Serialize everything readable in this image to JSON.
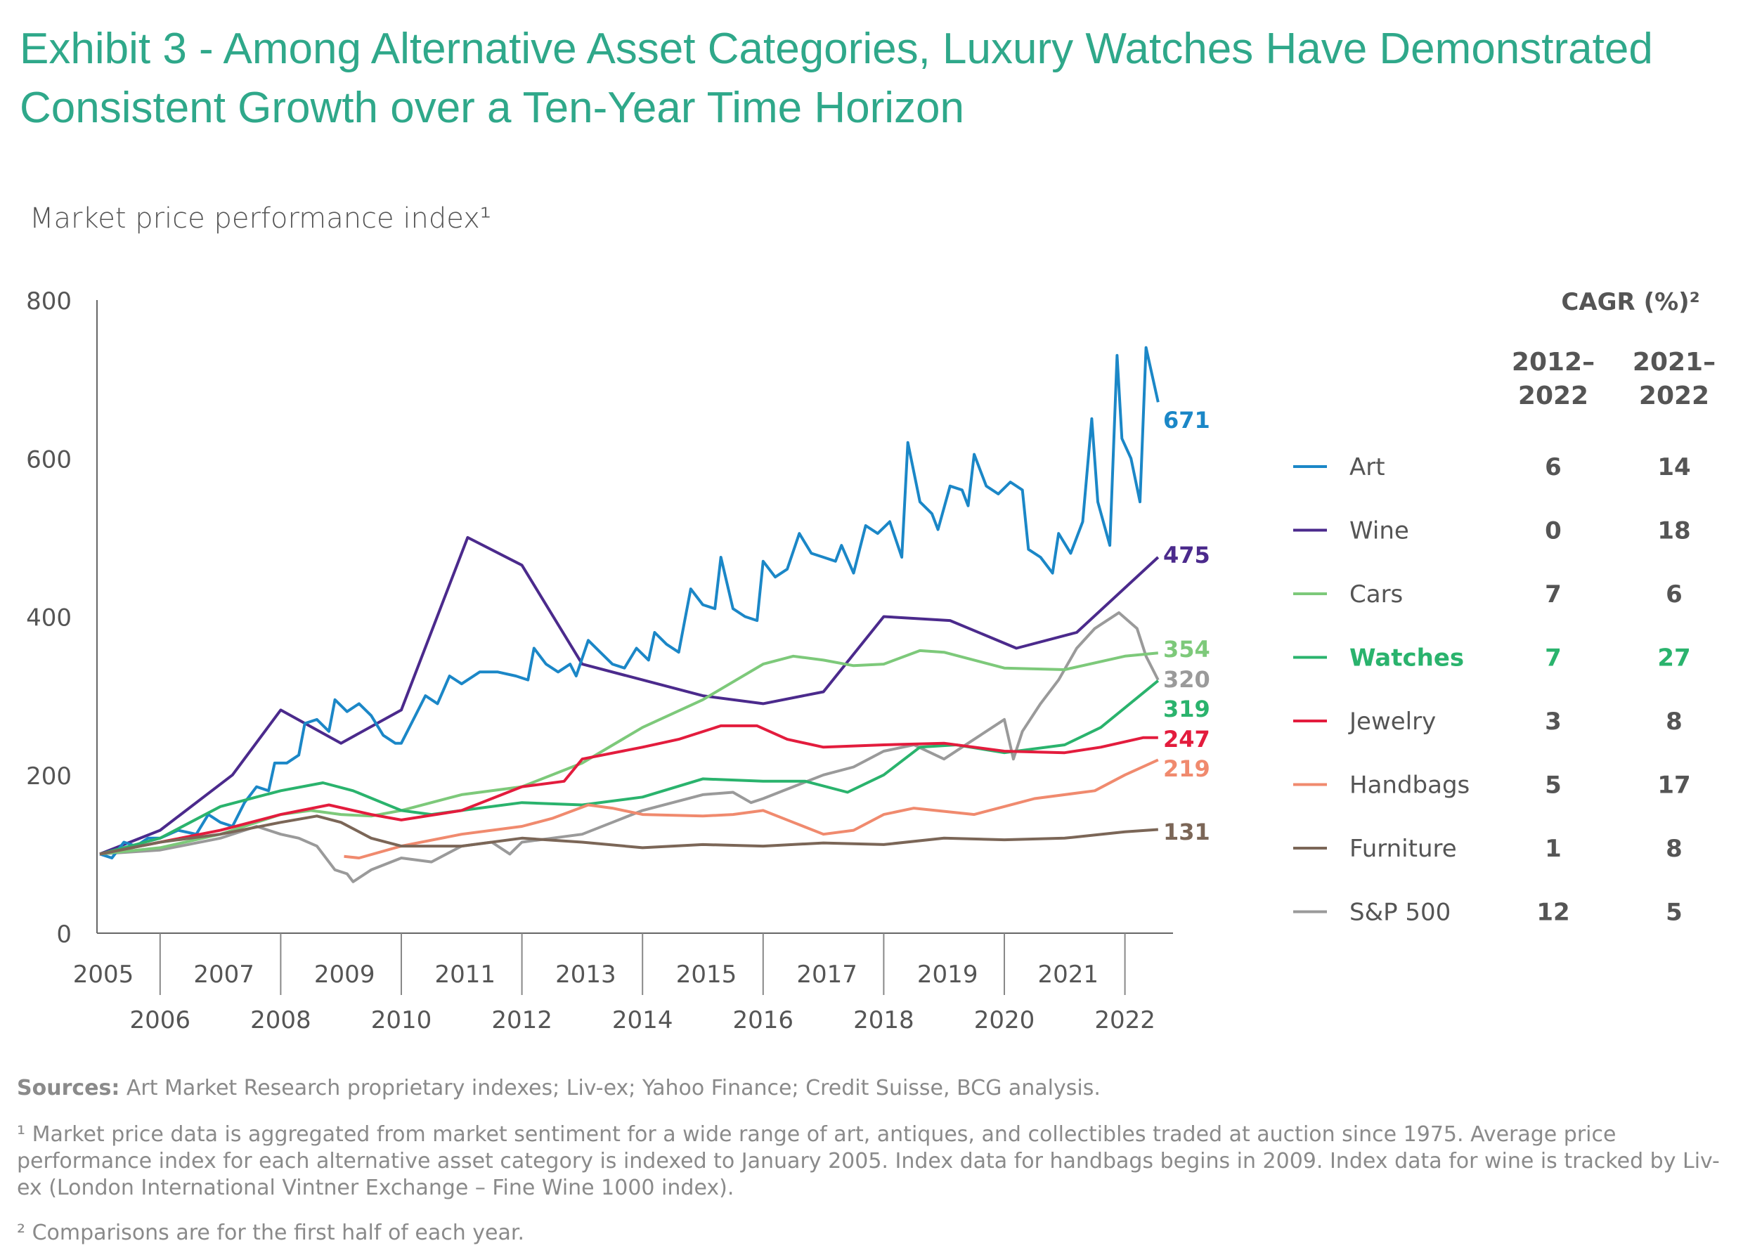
{
  "title": "Exhibit 3 - Among Alternative Asset Categories, Luxury Watches Have Demonstrated Consistent Growth over a Ten-Year Time Horizon",
  "subtitle": "Market price performance index¹",
  "sources_label": "Sources:",
  "sources_text": " Art Market Research proprietary indexes; Liv-ex; Yahoo Finance; Credit Suisse, BCG analysis.",
  "footnote1": "¹ Market price data is aggregated from market sentiment for a wide range of art, antiques, and collectibles traded at auction since 1975. Average price performance index for each alternative asset category is indexed to January 2005. Index data for handbags begins in 2009. Index data for wine is tracked by Liv-ex (London International Vintner Exchange – Fine Wine 1000 index).",
  "footnote2": "² Comparisons are for the first half of each year.",
  "chart_data": {
    "type": "line",
    "title": "Market price performance index",
    "xlabel": "",
    "ylabel": "",
    "xlim": [
      2005,
      2023
    ],
    "ylim": [
      0,
      800
    ],
    "yticks": [
      "0",
      "200",
      "400",
      "600",
      "800"
    ],
    "xticks_top": [
      "2005",
      "2007",
      "2009",
      "2011",
      "2013",
      "2015",
      "2017",
      "2019",
      "2021"
    ],
    "xticks_bottom": [
      "2006",
      "2008",
      "2010",
      "2012",
      "2014",
      "2016",
      "2018",
      "2020",
      "2022"
    ],
    "legend_title": "CAGR (%)²",
    "cagr_columns": [
      [
        "2012–",
        "2022"
      ],
      [
        "2021–",
        "2022"
      ]
    ],
    "legend_placement": "right",
    "series": [
      {
        "name": "Art",
        "color": "#1b87c7",
        "end_label": "671",
        "cagr": [
          "6",
          "14"
        ],
        "highlight": false,
        "points": [
          [
            2005,
            100
          ],
          [
            2005.2,
            95
          ],
          [
            2005.4,
            115
          ],
          [
            2005.6,
            110
          ],
          [
            2005.8,
            120
          ],
          [
            2006,
            120
          ],
          [
            2006.3,
            130
          ],
          [
            2006.6,
            125
          ],
          [
            2006.8,
            150
          ],
          [
            2007,
            140
          ],
          [
            2007.2,
            135
          ],
          [
            2007.4,
            165
          ],
          [
            2007.6,
            185
          ],
          [
            2007.8,
            180
          ],
          [
            2007.9,
            215
          ],
          [
            2008.1,
            215
          ],
          [
            2008.3,
            225
          ],
          [
            2008.4,
            265
          ],
          [
            2008.6,
            270
          ],
          [
            2008.8,
            255
          ],
          [
            2008.9,
            295
          ],
          [
            2009.1,
            280
          ],
          [
            2009.3,
            290
          ],
          [
            2009.5,
            275
          ],
          [
            2009.7,
            250
          ],
          [
            2009.9,
            240
          ],
          [
            2010,
            240
          ],
          [
            2010.2,
            270
          ],
          [
            2010.4,
            300
          ],
          [
            2010.6,
            290
          ],
          [
            2010.8,
            325
          ],
          [
            2011,
            315
          ],
          [
            2011.3,
            330
          ],
          [
            2011.6,
            330
          ],
          [
            2011.9,
            325
          ],
          [
            2012.1,
            320
          ],
          [
            2012.2,
            360
          ],
          [
            2012.4,
            340
          ],
          [
            2012.6,
            330
          ],
          [
            2012.8,
            340
          ],
          [
            2012.9,
            325
          ],
          [
            2013.1,
            370
          ],
          [
            2013.3,
            355
          ],
          [
            2013.5,
            340
          ],
          [
            2013.7,
            335
          ],
          [
            2013.9,
            360
          ],
          [
            2014.1,
            345
          ],
          [
            2014.2,
            380
          ],
          [
            2014.4,
            365
          ],
          [
            2014.6,
            355
          ],
          [
            2014.8,
            435
          ],
          [
            2015,
            415
          ],
          [
            2015.2,
            410
          ],
          [
            2015.3,
            475
          ],
          [
            2015.5,
            410
          ],
          [
            2015.7,
            400
          ],
          [
            2015.9,
            395
          ],
          [
            2016,
            470
          ],
          [
            2016.2,
            450
          ],
          [
            2016.4,
            460
          ],
          [
            2016.6,
            505
          ],
          [
            2016.8,
            480
          ],
          [
            2017,
            475
          ],
          [
            2017.2,
            470
          ],
          [
            2017.3,
            490
          ],
          [
            2017.5,
            455
          ],
          [
            2017.7,
            515
          ],
          [
            2017.9,
            505
          ],
          [
            2018.1,
            520
          ],
          [
            2018.3,
            475
          ],
          [
            2018.4,
            620
          ],
          [
            2018.6,
            545
          ],
          [
            2018.8,
            530
          ],
          [
            2018.9,
            510
          ],
          [
            2019.1,
            565
          ],
          [
            2019.3,
            560
          ],
          [
            2019.4,
            540
          ],
          [
            2019.5,
            605
          ],
          [
            2019.7,
            565
          ],
          [
            2019.9,
            555
          ],
          [
            2020.1,
            570
          ],
          [
            2020.3,
            560
          ],
          [
            2020.4,
            485
          ],
          [
            2020.6,
            475
          ],
          [
            2020.8,
            455
          ],
          [
            2020.9,
            505
          ],
          [
            2021.1,
            480
          ],
          [
            2021.3,
            520
          ],
          [
            2021.45,
            650
          ],
          [
            2021.55,
            545
          ],
          [
            2021.75,
            490
          ],
          [
            2021.87,
            730
          ],
          [
            2021.95,
            625
          ],
          [
            2022.1,
            600
          ],
          [
            2022.25,
            545
          ],
          [
            2022.35,
            740
          ],
          [
            2022.55,
            671
          ]
        ]
      },
      {
        "name": "Wine",
        "color": "#4b2a8c",
        "end_label": "475",
        "cagr": [
          "0",
          "18"
        ],
        "highlight": false,
        "points": [
          [
            2005,
            100
          ],
          [
            2006,
            130
          ],
          [
            2007.2,
            200
          ],
          [
            2008,
            282
          ],
          [
            2009,
            240
          ],
          [
            2010,
            282
          ],
          [
            2011.1,
            500
          ],
          [
            2012,
            465
          ],
          [
            2013,
            340
          ],
          [
            2015,
            300
          ],
          [
            2016,
            290
          ],
          [
            2017,
            305
          ],
          [
            2018,
            400
          ],
          [
            2019.1,
            395
          ],
          [
            2020.2,
            360
          ],
          [
            2021.2,
            380
          ],
          [
            2022.55,
            475
          ]
        ]
      },
      {
        "name": "Cars",
        "color": "#7dc97a",
        "end_label": "354",
        "cagr": [
          "7",
          "6"
        ],
        "highlight": false,
        "points": [
          [
            2005,
            100
          ],
          [
            2006,
            108
          ],
          [
            2007,
            125
          ],
          [
            2008,
            150
          ],
          [
            2008.5,
            155
          ],
          [
            2009,
            150
          ],
          [
            2009.5,
            148
          ],
          [
            2010,
            155
          ],
          [
            2011,
            175
          ],
          [
            2012,
            185
          ],
          [
            2013,
            215
          ],
          [
            2014,
            260
          ],
          [
            2015,
            295
          ],
          [
            2016,
            340
          ],
          [
            2016.5,
            350
          ],
          [
            2017,
            345
          ],
          [
            2017.5,
            338
          ],
          [
            2018,
            340
          ],
          [
            2018.6,
            357
          ],
          [
            2019,
            355
          ],
          [
            2020,
            335
          ],
          [
            2021,
            333
          ],
          [
            2022,
            350
          ],
          [
            2022.55,
            354
          ]
        ]
      },
      {
        "name": "Watches",
        "color": "#2ab36d",
        "end_label": "319",
        "cagr": [
          "7",
          "27"
        ],
        "highlight": true,
        "points": [
          [
            2005,
            100
          ],
          [
            2006,
            120
          ],
          [
            2007,
            160
          ],
          [
            2008,
            180
          ],
          [
            2008.7,
            190
          ],
          [
            2009.2,
            180
          ],
          [
            2010,
            155
          ],
          [
            2010.5,
            150
          ],
          [
            2011,
            155
          ],
          [
            2012,
            165
          ],
          [
            2013,
            162
          ],
          [
            2014,
            172
          ],
          [
            2015,
            195
          ],
          [
            2016,
            192
          ],
          [
            2016.7,
            192
          ],
          [
            2017.4,
            178
          ],
          [
            2018,
            200
          ],
          [
            2018.6,
            235
          ],
          [
            2019.2,
            238
          ],
          [
            2020,
            228
          ],
          [
            2021,
            238
          ],
          [
            2021.6,
            260
          ],
          [
            2022.55,
            319
          ]
        ]
      },
      {
        "name": "Jewelry",
        "color": "#e31c3d",
        "end_label": "247",
        "cagr": [
          "3",
          "8"
        ],
        "highlight": false,
        "points": [
          [
            2005,
            100
          ],
          [
            2006,
            115
          ],
          [
            2007,
            130
          ],
          [
            2008,
            150
          ],
          [
            2008.8,
            162
          ],
          [
            2009.5,
            150
          ],
          [
            2010,
            143
          ],
          [
            2011,
            155
          ],
          [
            2012,
            185
          ],
          [
            2012.7,
            192
          ],
          [
            2013,
            220
          ],
          [
            2014,
            235
          ],
          [
            2014.6,
            245
          ],
          [
            2015.3,
            262
          ],
          [
            2015.9,
            262
          ],
          [
            2016.4,
            245
          ],
          [
            2017,
            235
          ],
          [
            2018,
            238
          ],
          [
            2019,
            240
          ],
          [
            2020,
            230
          ],
          [
            2021,
            228
          ],
          [
            2021.6,
            235
          ],
          [
            2022.3,
            247
          ],
          [
            2022.55,
            247
          ]
        ]
      },
      {
        "name": "Handbags",
        "color": "#f08a6e",
        "end_label": "219",
        "cagr": [
          "5",
          "17"
        ],
        "highlight": false,
        "points": [
          [
            2009.05,
            97
          ],
          [
            2009.3,
            95
          ],
          [
            2010,
            110
          ],
          [
            2011,
            125
          ],
          [
            2012,
            135
          ],
          [
            2012.5,
            145
          ],
          [
            2013.1,
            162
          ],
          [
            2013.5,
            158
          ],
          [
            2014,
            150
          ],
          [
            2015,
            148
          ],
          [
            2015.5,
            150
          ],
          [
            2016,
            155
          ],
          [
            2016.5,
            140
          ],
          [
            2017,
            125
          ],
          [
            2017.5,
            130
          ],
          [
            2018,
            150
          ],
          [
            2018.5,
            158
          ],
          [
            2019.5,
            150
          ],
          [
            2020,
            160
          ],
          [
            2020.5,
            170
          ],
          [
            2021.5,
            180
          ],
          [
            2022,
            200
          ],
          [
            2022.55,
            219
          ]
        ]
      },
      {
        "name": "Furniture",
        "color": "#7b6657",
        "end_label": "131",
        "cagr": [
          "1",
          "8"
        ],
        "highlight": false,
        "points": [
          [
            2005,
            100
          ],
          [
            2006,
            115
          ],
          [
            2007,
            125
          ],
          [
            2008,
            140
          ],
          [
            2008.6,
            148
          ],
          [
            2009,
            140
          ],
          [
            2009.5,
            120
          ],
          [
            2010,
            110
          ],
          [
            2011,
            110
          ],
          [
            2012,
            120
          ],
          [
            2013,
            115
          ],
          [
            2014,
            108
          ],
          [
            2015,
            112
          ],
          [
            2016,
            110
          ],
          [
            2017,
            114
          ],
          [
            2018,
            112
          ],
          [
            2019,
            120
          ],
          [
            2020,
            118
          ],
          [
            2021,
            120
          ],
          [
            2022,
            128
          ],
          [
            2022.55,
            131
          ]
        ]
      },
      {
        "name": "S&P 500",
        "color": "#9a9a9a",
        "end_label": "320",
        "cagr": [
          "12",
          "5"
        ],
        "highlight": false,
        "points": [
          [
            2005,
            100
          ],
          [
            2006,
            105
          ],
          [
            2007,
            120
          ],
          [
            2007.6,
            135
          ],
          [
            2008,
            125
          ],
          [
            2008.3,
            120
          ],
          [
            2008.6,
            110
          ],
          [
            2008.9,
            80
          ],
          [
            2009.1,
            75
          ],
          [
            2009.2,
            65
          ],
          [
            2009.5,
            80
          ],
          [
            2010,
            95
          ],
          [
            2010.5,
            90
          ],
          [
            2011,
            110
          ],
          [
            2011.5,
            115
          ],
          [
            2011.8,
            100
          ],
          [
            2012,
            115
          ],
          [
            2012.5,
            120
          ],
          [
            2013,
            125
          ],
          [
            2013.5,
            140
          ],
          [
            2014,
            155
          ],
          [
            2014.5,
            165
          ],
          [
            2015,
            175
          ],
          [
            2015.5,
            178
          ],
          [
            2015.8,
            165
          ],
          [
            2016,
            170
          ],
          [
            2016.5,
            185
          ],
          [
            2017,
            200
          ],
          [
            2017.5,
            210
          ],
          [
            2018,
            230
          ],
          [
            2018.5,
            238
          ],
          [
            2019,
            220
          ],
          [
            2019.3,
            235
          ],
          [
            2019.6,
            250
          ],
          [
            2020,
            270
          ],
          [
            2020.15,
            220
          ],
          [
            2020.3,
            255
          ],
          [
            2020.6,
            290
          ],
          [
            2020.9,
            320
          ],
          [
            2021.2,
            360
          ],
          [
            2021.5,
            385
          ],
          [
            2021.9,
            405
          ],
          [
            2022.2,
            385
          ],
          [
            2022.35,
            350
          ],
          [
            2022.55,
            320
          ]
        ]
      }
    ]
  }
}
